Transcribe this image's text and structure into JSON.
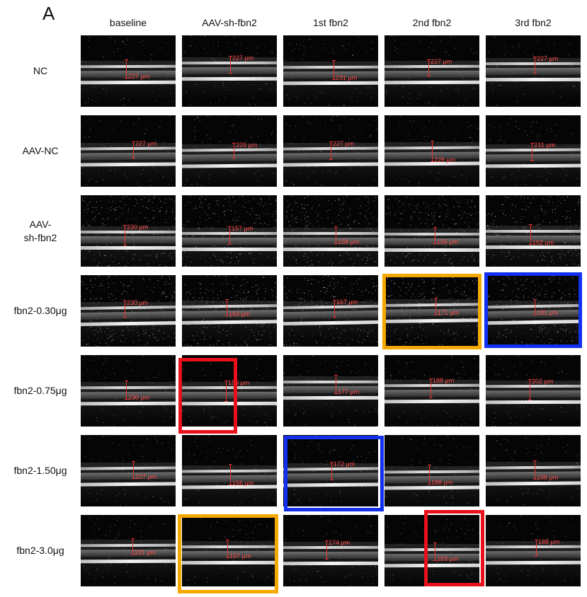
{
  "panel_letter": "A",
  "columns": [
    "baseline",
    "AAV-sh-fbn2",
    "1st fbn2",
    "2nd fbn2",
    "3rd fbn2"
  ],
  "rows": [
    {
      "label": "NC",
      "thickness": [
        "227 μm",
        "227 μm",
        "231 μm",
        "227 μm",
        "227 μm"
      ]
    },
    {
      "label": "AAV-NC",
      "thickness": [
        "227 μm",
        "229 μm",
        "227 μm",
        "228 μm",
        "231 μm"
      ]
    },
    {
      "label": "AAV-\nsh-fbn2",
      "thickness": [
        "230 μm",
        "157 μm",
        "158 μm",
        "156 μm",
        "152 μm"
      ]
    },
    {
      "label": "fbn2-0.30μg",
      "thickness": [
        "230 μm",
        "163 μm",
        "167 μm",
        "171 μm",
        "181 μm"
      ]
    },
    {
      "label": "fbn2-0.75μg",
      "thickness": [
        "230 μm",
        "156 μm",
        "177 μm",
        "188 μm",
        "202 μm"
      ]
    },
    {
      "label": "fbn2-1.50μg",
      "thickness": [
        "227 μm",
        "156 μm",
        "172 μm",
        "188 μm",
        "198 μm"
      ]
    },
    {
      "label": "fbn2-3.0μg",
      "thickness": [
        "231 μm",
        "157 μm",
        "174 μm",
        "183 μm",
        "188 μm"
      ]
    }
  ],
  "highlight_colors": {
    "orange": "#f5a800",
    "blue": "#1230f0",
    "red": "#e8101a"
  }
}
